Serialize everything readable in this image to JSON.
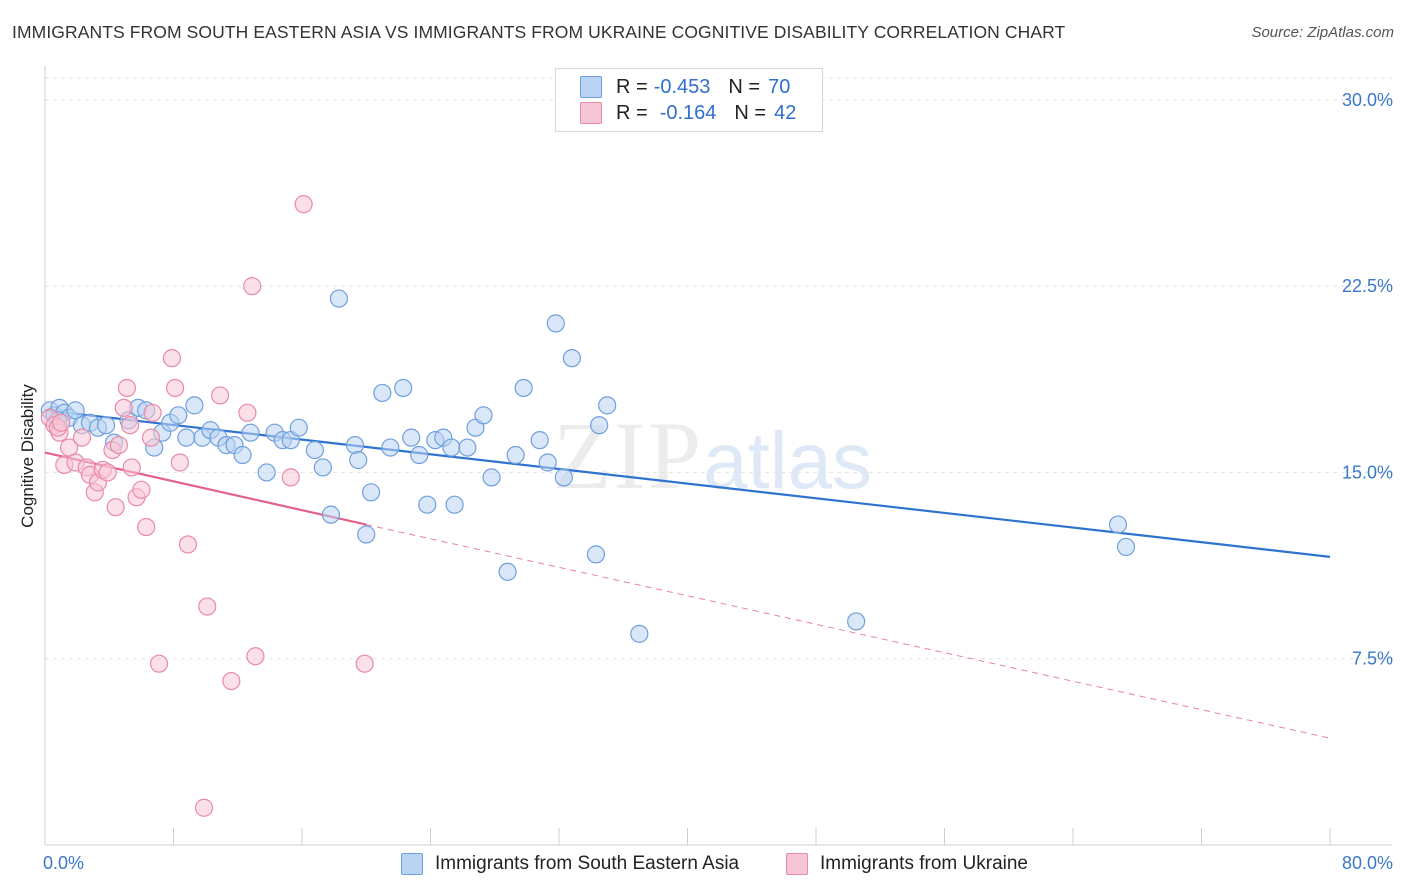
{
  "header": {
    "title": "IMMIGRANTS FROM SOUTH EASTERN ASIA VS IMMIGRANTS FROM UKRAINE COGNITIVE DISABILITY CORRELATION CHART",
    "source": "Source: ZipAtlas.com"
  },
  "watermark": {
    "zip": "ZIP",
    "atlas": "atlas"
  },
  "legend": {
    "rows": [
      {
        "r_label": "R =",
        "r_value": "-0.453",
        "n_label": "N =",
        "n_value": "70",
        "color": "#a9c9f0",
        "border": "#6f9ddb"
      },
      {
        "r_label": "R =",
        "r_value": "-0.164",
        "n_label": "N =",
        "n_value": "42",
        "color": "#f7c1d2",
        "border": "#e88aa8"
      }
    ]
  },
  "bottom_legend": {
    "items": [
      {
        "label": "Immigrants from South Eastern Asia",
        "color": "#a9c9f0",
        "border": "#6f9ddb"
      },
      {
        "label": "Immigrants from Ukraine",
        "color": "#f7c1d2",
        "border": "#e88aa8"
      }
    ]
  },
  "chart_data": {
    "type": "scatter",
    "title": "IMMIGRANTS FROM SOUTH EASTERN ASIA VS IMMIGRANTS FROM UKRAINE COGNITIVE DISABILITY CORRELATION CHART",
    "ylabel": "Cognitive Disability",
    "xlabel": "",
    "xlim": [
      0,
      80
    ],
    "ylim": [
      0,
      31
    ],
    "x_tick_labels": [
      "0.0%",
      "80.0%"
    ],
    "y_ticks": [
      7.5,
      15.0,
      22.5,
      30.0
    ],
    "y_tick_labels": [
      "7.5%",
      "15.0%",
      "22.5%",
      "30.0%"
    ],
    "grid": "horizontal dashed",
    "legend_position": "top-center",
    "series": [
      {
        "name": "Immigrants from South Eastern Asia",
        "color": "#6fa0dd",
        "fill": "#b9d3f3",
        "trend": {
          "x": [
            0,
            80
          ],
          "y": [
            17.5,
            11.6
          ],
          "style": "solid",
          "color": "#2f73d0"
        },
        "points": [
          [
            0.3,
            17.5
          ],
          [
            0.6,
            17.3
          ],
          [
            0.9,
            17.6
          ],
          [
            1.2,
            17.4
          ],
          [
            1.5,
            17.2
          ],
          [
            1.9,
            17.5
          ],
          [
            2.3,
            16.9
          ],
          [
            2.8,
            17.0
          ],
          [
            3.3,
            16.8
          ],
          [
            3.8,
            16.9
          ],
          [
            4.3,
            16.2
          ],
          [
            5.2,
            17.1
          ],
          [
            5.8,
            17.6
          ],
          [
            6.3,
            17.5
          ],
          [
            6.8,
            16.0
          ],
          [
            7.3,
            16.6
          ],
          [
            7.8,
            17.0
          ],
          [
            8.3,
            17.3
          ],
          [
            8.8,
            16.4
          ],
          [
            9.3,
            17.7
          ],
          [
            9.8,
            16.4
          ],
          [
            10.3,
            16.7
          ],
          [
            10.8,
            16.4
          ],
          [
            11.3,
            16.1
          ],
          [
            11.8,
            16.1
          ],
          [
            12.3,
            15.7
          ],
          [
            12.8,
            16.6
          ],
          [
            13.8,
            15.0
          ],
          [
            14.3,
            16.6
          ],
          [
            14.8,
            16.3
          ],
          [
            15.3,
            16.3
          ],
          [
            15.8,
            16.8
          ],
          [
            16.8,
            15.9
          ],
          [
            17.3,
            15.2
          ],
          [
            17.8,
            13.3
          ],
          [
            18.3,
            22.0
          ],
          [
            19.3,
            16.1
          ],
          [
            19.5,
            15.5
          ],
          [
            20.0,
            12.5
          ],
          [
            20.3,
            14.2
          ],
          [
            21.0,
            18.2
          ],
          [
            21.5,
            16.0
          ],
          [
            22.3,
            18.4
          ],
          [
            22.8,
            16.4
          ],
          [
            23.3,
            15.7
          ],
          [
            23.8,
            13.7
          ],
          [
            24.3,
            16.3
          ],
          [
            24.8,
            16.4
          ],
          [
            25.3,
            16.0
          ],
          [
            25.5,
            13.7
          ],
          [
            26.3,
            16.0
          ],
          [
            26.8,
            16.8
          ],
          [
            27.3,
            17.3
          ],
          [
            27.8,
            14.8
          ],
          [
            28.8,
            11.0
          ],
          [
            29.3,
            15.7
          ],
          [
            29.8,
            18.4
          ],
          [
            30.8,
            16.3
          ],
          [
            31.3,
            15.4
          ],
          [
            31.8,
            21.0
          ],
          [
            32.3,
            14.8
          ],
          [
            32.8,
            19.6
          ],
          [
            34.3,
            11.7
          ],
          [
            34.5,
            16.9
          ],
          [
            35.0,
            17.7
          ],
          [
            37.0,
            8.5
          ],
          [
            50.5,
            9.0
          ],
          [
            66.8,
            12.9
          ],
          [
            67.3,
            12.0
          ],
          [
            0.8,
            17.1
          ]
        ]
      },
      {
        "name": "Immigrants from Ukraine",
        "color": "#e98aa8",
        "fill": "#f7c6d5",
        "trend": {
          "x": [
            0,
            20
          ],
          "y": [
            15.8,
            12.9
          ],
          "x_dashed": [
            20,
            80
          ],
          "y_dashed": [
            12.9,
            4.3
          ],
          "style": "solid+dashed",
          "color": "#e2628c"
        },
        "points": [
          [
            0.3,
            17.2
          ],
          [
            0.6,
            16.9
          ],
          [
            0.9,
            16.6
          ],
          [
            1.2,
            15.3
          ],
          [
            1.5,
            16.0
          ],
          [
            1.9,
            15.4
          ],
          [
            2.3,
            16.4
          ],
          [
            2.6,
            15.2
          ],
          [
            2.8,
            14.9
          ],
          [
            3.1,
            14.2
          ],
          [
            3.3,
            14.6
          ],
          [
            3.6,
            15.1
          ],
          [
            3.9,
            15.0
          ],
          [
            4.2,
            15.9
          ],
          [
            4.4,
            13.6
          ],
          [
            4.6,
            16.1
          ],
          [
            4.9,
            17.6
          ],
          [
            5.1,
            18.4
          ],
          [
            5.3,
            16.9
          ],
          [
            5.4,
            15.2
          ],
          [
            5.7,
            14.0
          ],
          [
            6.0,
            14.3
          ],
          [
            6.3,
            12.8
          ],
          [
            6.6,
            16.4
          ],
          [
            6.7,
            17.4
          ],
          [
            7.1,
            7.3
          ],
          [
            7.9,
            19.6
          ],
          [
            8.1,
            18.4
          ],
          [
            8.4,
            15.4
          ],
          [
            8.9,
            12.1
          ],
          [
            9.9,
            1.5
          ],
          [
            10.1,
            9.6
          ],
          [
            10.9,
            18.1
          ],
          [
            11.6,
            6.6
          ],
          [
            12.6,
            17.4
          ],
          [
            12.9,
            22.5
          ],
          [
            13.1,
            7.6
          ],
          [
            15.3,
            14.8
          ],
          [
            16.1,
            25.8
          ],
          [
            19.9,
            7.3
          ],
          [
            0.8,
            16.8
          ],
          [
            1.0,
            17.0
          ]
        ]
      }
    ]
  }
}
